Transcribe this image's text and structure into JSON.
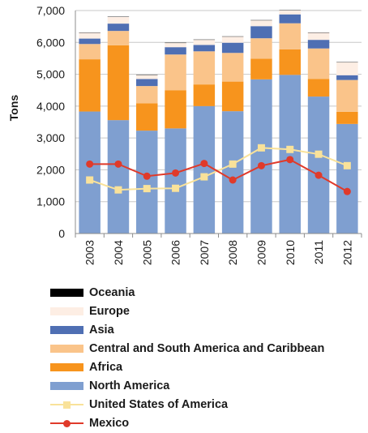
{
  "chart_data": {
    "type": "bar",
    "stacked": true,
    "title": "",
    "xlabel": "",
    "ylabel": "Tons",
    "ylim": [
      0,
      7000
    ],
    "yticks": [
      "0",
      "1,000",
      "2,000",
      "3,000",
      "4,000",
      "5,000",
      "6,000",
      "7,000"
    ],
    "ytick_values": [
      0,
      1000,
      2000,
      3000,
      4000,
      5000,
      6000,
      7000
    ],
    "grid": true,
    "legend_position": "bottom",
    "categories": [
      "2003",
      "2004",
      "2005",
      "2006",
      "2007",
      "2008",
      "2009",
      "2010",
      "2011",
      "2012"
    ],
    "series": [
      {
        "name": "North America",
        "kind": "bar",
        "color": "#7f9fd0",
        "values": [
          3830,
          3560,
          3230,
          3300,
          4000,
          3840,
          4840,
          4980,
          4300,
          3440
        ]
      },
      {
        "name": "Africa",
        "kind": "bar",
        "color": "#f7941d",
        "values": [
          1640,
          2350,
          860,
          1200,
          680,
          930,
          650,
          800,
          550,
          380
        ]
      },
      {
        "name": "Central and South America and Caribbean",
        "kind": "bar",
        "color": "#fac48a",
        "values": [
          480,
          450,
          540,
          1120,
          1040,
          900,
          640,
          820,
          960,
          1000
        ]
      },
      {
        "name": "Asia",
        "kind": "bar",
        "color": "#4f6fb3",
        "values": [
          170,
          230,
          220,
          230,
          200,
          320,
          380,
          280,
          270,
          150
        ]
      },
      {
        "name": "Europe",
        "kind": "bar",
        "color": "#fdeee4",
        "values": [
          180,
          210,
          120,
          130,
          160,
          190,
          180,
          120,
          220,
          400
        ]
      },
      {
        "name": "Oceania",
        "kind": "bar",
        "color": "#000000",
        "values": [
          10,
          10,
          10,
          10,
          10,
          10,
          10,
          10,
          10,
          10
        ]
      },
      {
        "name": "United States of America",
        "kind": "line",
        "marker": "square",
        "color": "#f9e29a",
        "values": [
          1680,
          1370,
          1410,
          1420,
          1780,
          2180,
          2690,
          2640,
          2490,
          2130
        ]
      },
      {
        "name": "Mexico",
        "kind": "line",
        "marker": "circle",
        "color": "#e03a2a",
        "values": [
          2180,
          2180,
          1800,
          1900,
          2200,
          1680,
          2130,
          2320,
          1830,
          1320
        ]
      }
    ],
    "legend_order": [
      "Oceania",
      "Europe",
      "Asia",
      "Central and South America and Caribbean",
      "Africa",
      "North America",
      "United States of America",
      "Mexico"
    ]
  }
}
